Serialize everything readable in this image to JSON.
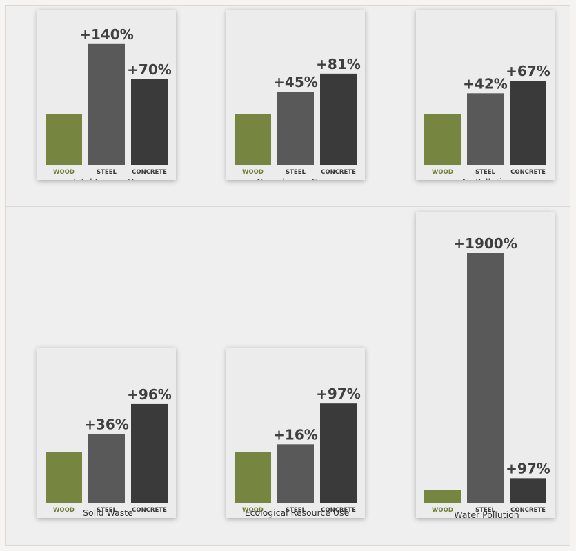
{
  "colors": {
    "wood": "#76853f",
    "steel": "#595959",
    "concrete": "#3a3a3a",
    "wood_label": "#6e7e36",
    "label": "#3a3a3a",
    "value_text": "#3f3f3f"
  },
  "chart_data": [
    {
      "type": "bar",
      "title": "Total Energy Use",
      "categories": [
        "WOOD",
        "STEEL",
        "CONCRETE"
      ],
      "values": [
        100,
        240,
        170
      ],
      "value_labels": [
        "",
        "+140%",
        "+70%"
      ]
    },
    {
      "type": "bar",
      "title": "Greenhouse Gases",
      "categories": [
        "WOOD",
        "STEEL",
        "CONCRETE"
      ],
      "values": [
        100,
        145,
        181
      ],
      "value_labels": [
        "",
        "+45%",
        "+81%"
      ]
    },
    {
      "type": "bar",
      "title": "Air Pollution",
      "categories": [
        "WOOD",
        "STEEL",
        "CONCRETE"
      ],
      "values": [
        100,
        142,
        167
      ],
      "value_labels": [
        "",
        "+42%",
        "+67%"
      ]
    },
    {
      "type": "bar",
      "title": "Solid Waste",
      "categories": [
        "WOOD",
        "STEEL",
        "CONCRETE"
      ],
      "values": [
        100,
        136,
        196
      ],
      "value_labels": [
        "",
        "+36%",
        "+96%"
      ]
    },
    {
      "type": "bar",
      "title": "Ecological Resource Use",
      "categories": [
        "WOOD",
        "STEEL",
        "CONCRETE"
      ],
      "values": [
        100,
        116,
        197
      ],
      "value_labels": [
        "",
        "+16%",
        "+97%"
      ]
    },
    {
      "type": "bar",
      "title": "Water Pollution",
      "categories": [
        "WOOD",
        "STEEL",
        "CONCRETE"
      ],
      "values": [
        100,
        2000,
        197
      ],
      "value_labels": [
        "",
        "+1900%",
        "+97%"
      ]
    }
  ]
}
